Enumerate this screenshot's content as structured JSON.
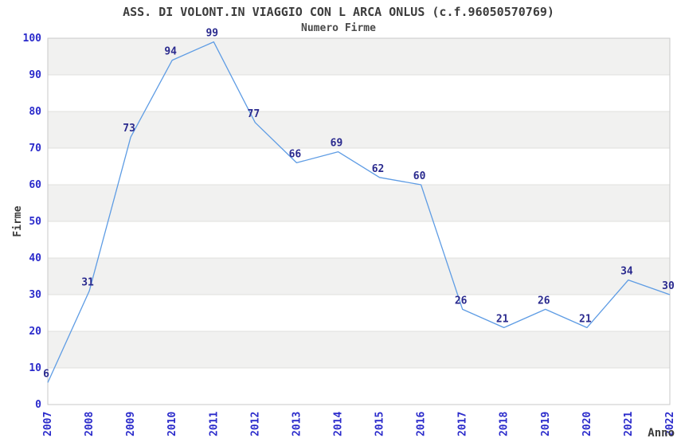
{
  "chart_data": {
    "type": "line",
    "title": "ASS. DI VOLONT.IN VIAGGIO CON L ARCA ONLUS (c.f.96050570769)",
    "subtitle": "Numero Firme",
    "xlabel": "Anno",
    "ylabel": "Firme",
    "categories": [
      "2007",
      "2008",
      "2009",
      "2010",
      "2011",
      "2012",
      "2013",
      "2014",
      "2015",
      "2016",
      "2017",
      "2018",
      "2019",
      "2020",
      "2021",
      "2022"
    ],
    "values": [
      6,
      31,
      73,
      94,
      99,
      77,
      66,
      69,
      62,
      60,
      26,
      21,
      26,
      21,
      34,
      30
    ],
    "ylim": [
      0,
      100
    ],
    "ytick_step": 10,
    "legend": "none",
    "grid": "horizontal-bands",
    "markers": false,
    "colors": {
      "line": "#5E9CE4",
      "tick_label": "#2B2BCB",
      "value_label": "#2A2A8E",
      "axis_text": "#3c3c3c",
      "band": "#F1F1F0",
      "gridline": "#E0E0DE",
      "border": "#C9C9C9",
      "background": "#FFFFFF"
    }
  }
}
